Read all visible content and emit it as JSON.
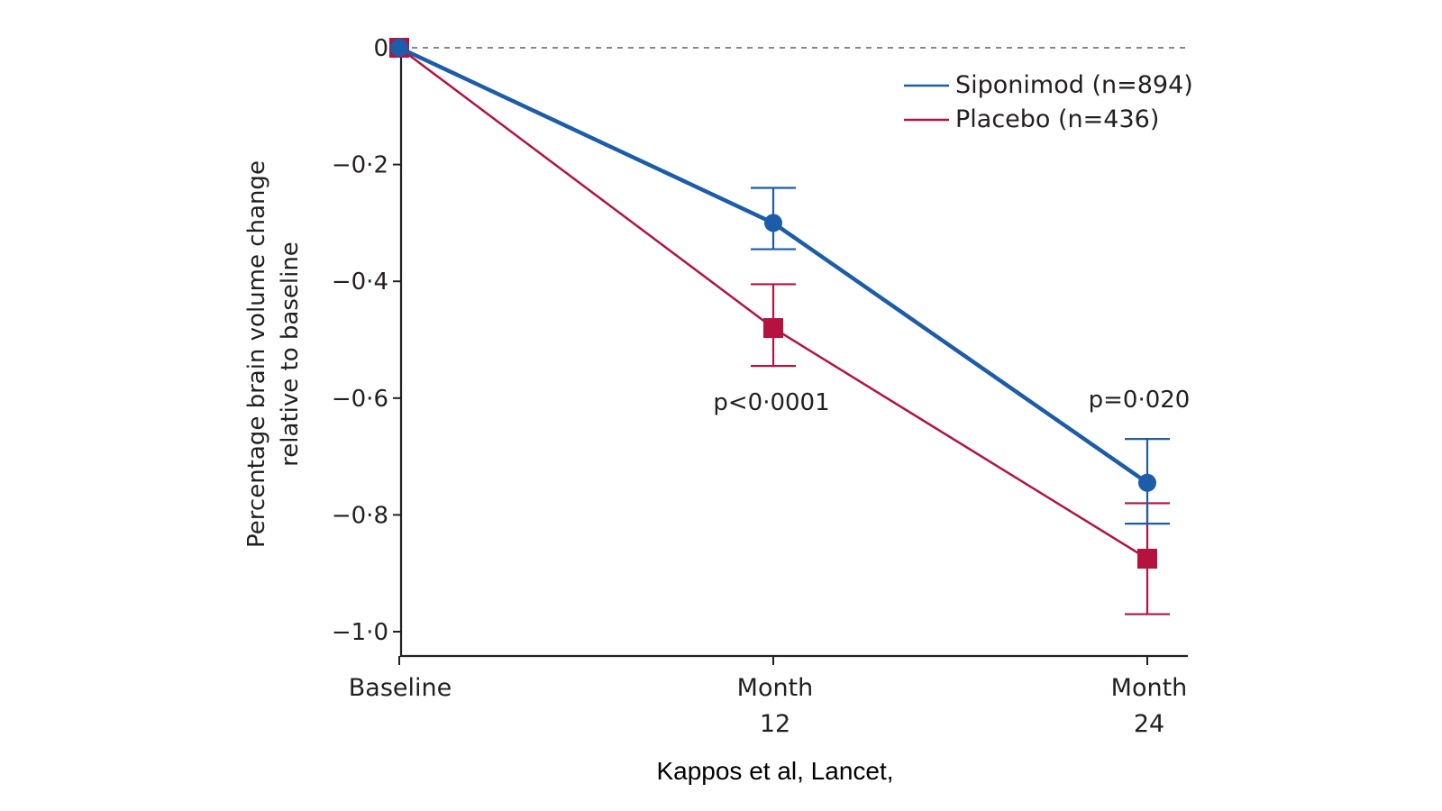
{
  "chart_data": {
    "type": "line",
    "title": "",
    "xlabel": "",
    "ylabel_lines": [
      "Percentage brain volume change",
      "relative to baseline"
    ],
    "categories": [
      {
        "lines": [
          "Baseline"
        ]
      },
      {
        "lines": [
          "Month",
          "12"
        ]
      },
      {
        "lines": [
          "Month",
          "24"
        ]
      }
    ],
    "y_ticks": [
      {
        "value": 0,
        "label": "0"
      },
      {
        "value": -0.2,
        "label": "−0·2"
      },
      {
        "value": -0.4,
        "label": "−0·4"
      },
      {
        "value": -0.6,
        "label": "−0·6"
      },
      {
        "value": -0.8,
        "label": "−0·8"
      },
      {
        "value": -1.0,
        "label": "−1·0"
      }
    ],
    "ylim": [
      -1.04,
      0.01
    ],
    "reference_line": {
      "y": 0,
      "style": "dashed",
      "color": "#7f8a96"
    },
    "legend_position": "top-right",
    "series": [
      {
        "name": "Siponimod (n=894)",
        "color": "#1c5ca8",
        "marker": "circle",
        "values": [
          0,
          -0.3,
          -0.745
        ],
        "err_upper": [
          0,
          -0.24,
          -0.67
        ],
        "err_lower": [
          0,
          -0.345,
          -0.815
        ]
      },
      {
        "name": "Placebo (n=436)",
        "color": "#b5123f",
        "marker": "square",
        "values": [
          0,
          -0.48,
          -0.875
        ],
        "err_upper": [
          0,
          -0.405,
          -0.78
        ],
        "err_lower": [
          0,
          -0.545,
          -0.97
        ]
      }
    ],
    "annotations": [
      {
        "category_index": 1,
        "text": "p<0·0001"
      },
      {
        "category_index": 2,
        "text": "p=0·020"
      }
    ]
  },
  "source_text": "Kappos et al, Lancet,"
}
